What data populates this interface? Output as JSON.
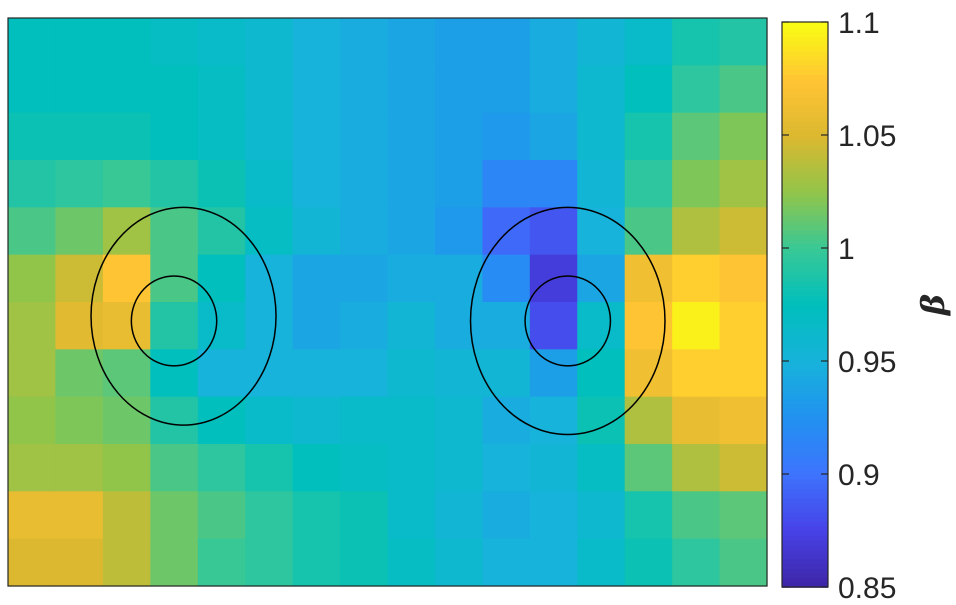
{
  "chart_data": {
    "type": "heatmap",
    "title": "",
    "xlabel": "",
    "ylabel": "",
    "colormap": "parula",
    "clim": [
      0.85,
      1.1
    ],
    "colorbar": {
      "label": "β",
      "ticks": [
        0.85,
        0.9,
        0.95,
        1,
        1.05,
        1.1
      ],
      "tick_labels": [
        "0.85",
        "0.9",
        "0.95",
        "1",
        "1.05",
        "1.1"
      ]
    },
    "grid_rows": 12,
    "grid_cols": 16,
    "values": [
      [
        0.975,
        0.975,
        0.975,
        0.97,
        0.965,
        0.96,
        0.95,
        0.945,
        0.94,
        0.935,
        0.935,
        0.945,
        0.955,
        0.965,
        0.985,
        0.99
      ],
      [
        0.975,
        0.975,
        0.975,
        0.975,
        0.97,
        0.96,
        0.95,
        0.945,
        0.94,
        0.935,
        0.935,
        0.945,
        0.96,
        0.975,
        0.995,
        1.005
      ],
      [
        0.98,
        0.98,
        0.98,
        0.975,
        0.97,
        0.96,
        0.95,
        0.945,
        0.94,
        0.935,
        0.93,
        0.94,
        0.96,
        0.985,
        1.01,
        1.02
      ],
      [
        0.99,
        0.995,
        1.0,
        0.99,
        0.98,
        0.965,
        0.95,
        0.945,
        0.94,
        0.935,
        0.915,
        0.915,
        0.955,
        0.995,
        1.02,
        1.03
      ],
      [
        1.005,
        1.015,
        1.03,
        1.005,
        0.99,
        0.97,
        0.955,
        0.945,
        0.94,
        0.93,
        0.895,
        0.885,
        0.95,
        1.005,
        1.035,
        1.045
      ],
      [
        1.025,
        1.045,
        1.075,
        1.005,
        0.975,
        0.95,
        0.94,
        0.94,
        0.945,
        0.945,
        0.92,
        0.87,
        0.94,
        1.065,
        1.08,
        1.075
      ],
      [
        1.03,
        1.055,
        1.06,
        0.99,
        0.965,
        0.95,
        0.94,
        0.945,
        0.955,
        0.945,
        0.945,
        0.88,
        0.965,
        1.075,
        1.095,
        1.08
      ],
      [
        1.03,
        1.015,
        1.01,
        0.975,
        0.95,
        0.95,
        0.95,
        0.95,
        0.96,
        0.955,
        0.955,
        0.935,
        0.975,
        1.065,
        1.08,
        1.08
      ],
      [
        1.025,
        1.02,
        1.015,
        0.99,
        0.975,
        0.965,
        0.96,
        0.965,
        0.965,
        0.96,
        0.945,
        0.95,
        0.98,
        1.035,
        1.06,
        1.065
      ],
      [
        1.03,
        1.03,
        1.025,
        1.005,
        0.995,
        0.985,
        0.975,
        0.97,
        0.965,
        0.96,
        0.95,
        0.955,
        0.97,
        1.01,
        1.035,
        1.045
      ],
      [
        1.06,
        1.06,
        1.04,
        1.015,
        1.005,
        0.995,
        0.985,
        0.98,
        0.965,
        0.955,
        0.945,
        0.95,
        0.96,
        0.985,
        1.005,
        1.01
      ],
      [
        1.05,
        1.05,
        1.04,
        1.015,
        1.0,
        0.995,
        0.985,
        0.98,
        0.97,
        0.96,
        0.95,
        0.95,
        0.965,
        0.98,
        0.995,
        1.005
      ]
    ],
    "contours": [
      {
        "cx": 3.7,
        "cy": 6.3,
        "rx": 1.95,
        "ry": 2.3
      },
      {
        "cx": 3.5,
        "cy": 6.4,
        "rx": 0.9,
        "ry": 0.95
      },
      {
        "cx": 11.8,
        "cy": 6.4,
        "rx": 2.05,
        "ry": 2.4
      },
      {
        "cx": 11.8,
        "cy": 6.4,
        "rx": 0.9,
        "ry": 0.95
      }
    ],
    "grid": false,
    "legend": "none"
  }
}
